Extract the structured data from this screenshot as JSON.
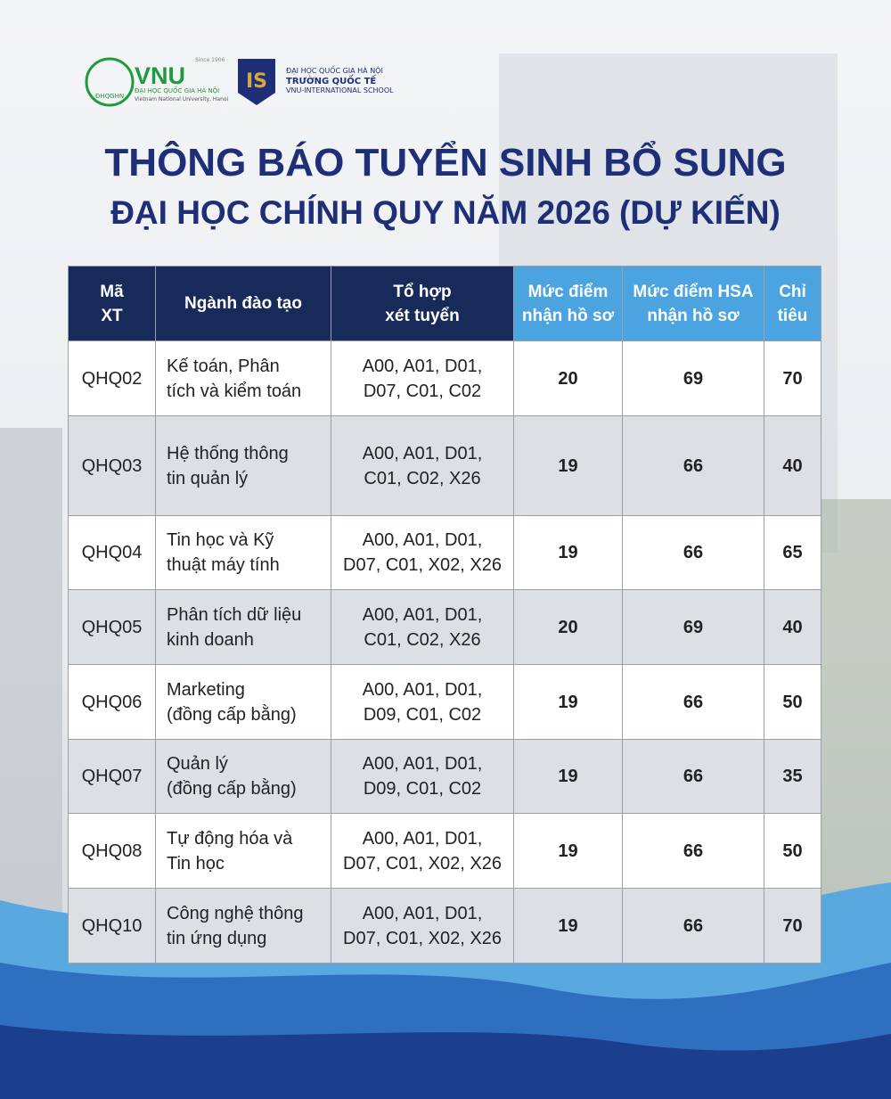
{
  "logos": {
    "vnu": {
      "short": "ĐHQGHN",
      "name": "VNU",
      "since": "Since 1906",
      "line1": "ĐẠI HỌC QUỐC GIA HÀ NỘI",
      "line2": "Vietnam National University, Hanoi"
    },
    "is": {
      "mark": "IS",
      "line1": "ĐẠI HỌC QUỐC GIA HÀ NỘI",
      "line2": "TRƯỜNG QUỐC TẾ",
      "line3": "VNU-INTERNATIONAL SCHOOL"
    }
  },
  "title": [
    "THÔNG BÁO TUYỂN SINH BỔ SUNG",
    "ĐẠI HỌC CHÍNH QUY NĂM 2026 (DỰ KIẾN)"
  ],
  "table": {
    "headers": [
      [
        "Mã",
        "XT"
      ],
      [
        "Ngành đào tạo"
      ],
      [
        "Tổ hợp",
        "xét tuyển"
      ],
      [
        "Mức điểm",
        "nhận hồ sơ"
      ],
      [
        "Mức điểm HSA",
        "nhận hồ sơ"
      ],
      [
        "Chỉ",
        "tiêu"
      ]
    ],
    "rows": [
      [
        "QHQ02",
        [
          "Kế toán, Phân",
          "tích và kiểm toán"
        ],
        [
          "A00, A01, D01,",
          "D07, C01, C02"
        ],
        20,
        69,
        70
      ],
      [
        "QHQ03",
        [
          "Hệ thống thông",
          "tin quản lý"
        ],
        [
          "A00, A01, D01,",
          "C01, C02, X26"
        ],
        19,
        66,
        40
      ],
      [
        "QHQ04",
        [
          "Tin học và Kỹ",
          "thuật máy tính"
        ],
        [
          "A00, A01, D01,",
          "D07, C01, X02, X26"
        ],
        19,
        66,
        65
      ],
      [
        "QHQ05",
        [
          "Phân tích dữ liệu",
          "kinh doanh"
        ],
        [
          "A00, A01, D01,",
          "C01, C02, X26"
        ],
        20,
        69,
        40
      ],
      [
        "QHQ06",
        [
          "Marketing",
          "(đồng cấp bằng)"
        ],
        [
          "A00, A01, D01,",
          "D09, C01, C02"
        ],
        19,
        66,
        50
      ],
      [
        "QHQ07",
        [
          "Quản lý",
          "(đồng cấp bằng)"
        ],
        [
          "A00, A01, D01,",
          "D09, C01, C02"
        ],
        19,
        66,
        35
      ],
      [
        "QHQ08",
        [
          "Tự động hóa và",
          "Tin học"
        ],
        [
          "A00, A01, D01,",
          "D07, C01, X02, X26"
        ],
        19,
        66,
        50
      ],
      [
        "QHQ10",
        [
          "Công nghệ thông",
          "tin ứng dụng"
        ],
        [
          "A00, A01, D01,",
          "D07, C01, X02, X26"
        ],
        19,
        66,
        70
      ]
    ]
  }
}
